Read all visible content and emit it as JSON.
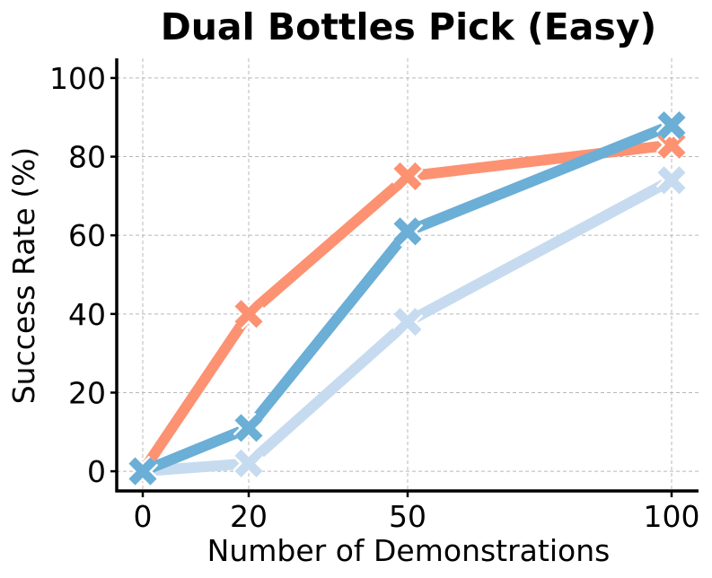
{
  "chart_data": {
    "type": "line",
    "title": "Dual Bottles Pick (Easy)",
    "xlabel": "Number of Demonstrations",
    "ylabel": "Success Rate (%)",
    "x": [
      0,
      20,
      50,
      100
    ],
    "x_tick_labels": [
      "0",
      "20",
      "50",
      "100"
    ],
    "y_ticks": [
      0,
      20,
      40,
      60,
      80,
      100
    ],
    "y_tick_labels": [
      "0",
      "20",
      "40",
      "60",
      "80",
      "100"
    ],
    "xlim": [
      -5,
      105
    ],
    "ylim": [
      -5,
      105
    ],
    "grid": true,
    "marker": "X",
    "series": [
      {
        "color": "#c6dbef",
        "values": [
          0,
          2,
          38,
          74
        ]
      },
      {
        "color": "#fc9272",
        "values": [
          0,
          40,
          75,
          83
        ]
      },
      {
        "color": "#6baed6",
        "values": [
          0,
          11,
          61,
          88
        ]
      }
    ]
  }
}
